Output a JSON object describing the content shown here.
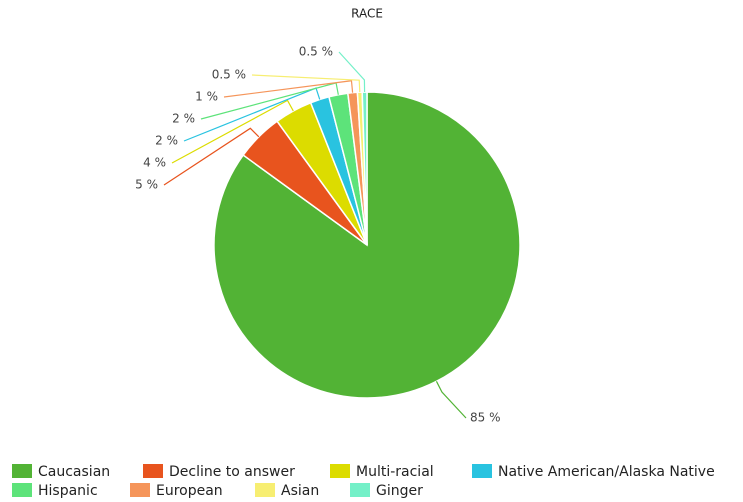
{
  "chart_data": {
    "type": "pie",
    "title": "RACE",
    "categories": [
      "Caucasian",
      "Decline to answer",
      "Multi-racial",
      "Native American/Alaska Native",
      "Hispanic",
      "European",
      "Asian",
      "Ginger"
    ],
    "values": [
      85,
      5,
      4,
      2,
      2,
      1,
      0.5,
      0.5
    ],
    "value_labels": [
      "85 %",
      "5 %",
      "4 %",
      "2 %",
      "2 %",
      "1 %",
      "0.5 %",
      "0.5 %"
    ],
    "colors": [
      "#52b335",
      "#e8541e",
      "#dcdc00",
      "#29c3e0",
      "#5de37a",
      "#f5955a",
      "#f7ee72",
      "#74f0c8"
    ],
    "legend": "bottom"
  }
}
